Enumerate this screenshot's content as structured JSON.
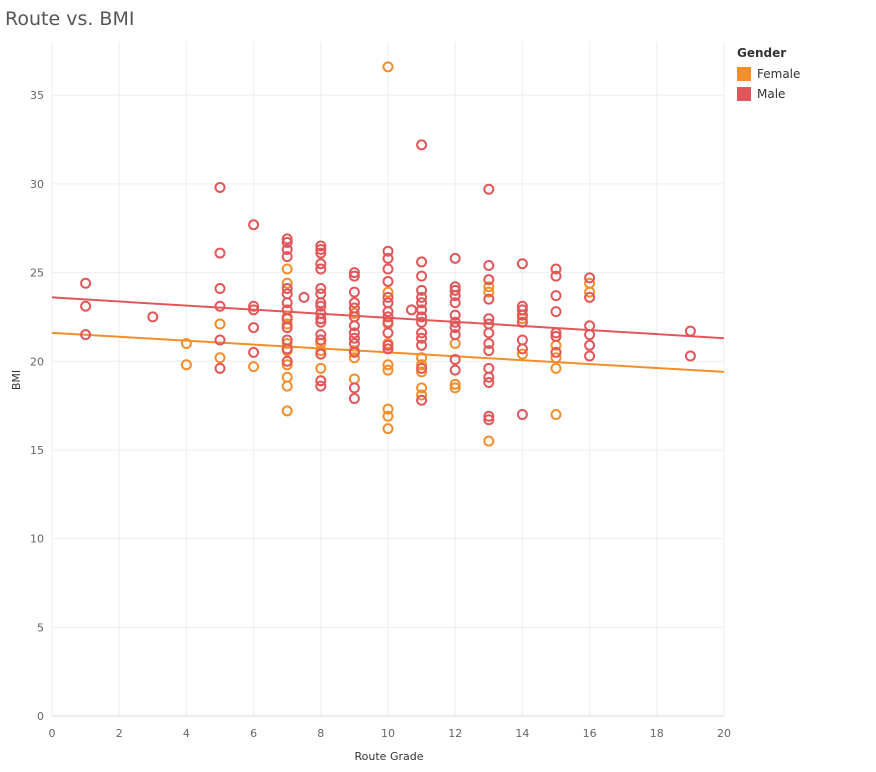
{
  "title": "Route vs. BMI",
  "legend": {
    "title": "Gender",
    "items": [
      {
        "label": "Female",
        "color": "#F28E2B"
      },
      {
        "label": "Male",
        "color": "#E15759"
      }
    ]
  },
  "chart_data": {
    "type": "scatter",
    "xlabel": "Route Grade",
    "ylabel": "BMI",
    "xlim": [
      0,
      20
    ],
    "ylim": [
      0,
      38
    ],
    "xticks": [
      0,
      2,
      4,
      6,
      8,
      10,
      12,
      14,
      16,
      18,
      20
    ],
    "yticks": [
      0,
      5,
      10,
      15,
      20,
      25,
      30,
      35
    ],
    "grid": true,
    "legend_position": "top-right",
    "series": [
      {
        "name": "Female",
        "color": "#F28E2B",
        "trend": {
          "x": [
            0,
            20
          ],
          "y": [
            21.6,
            19.4
          ]
        },
        "points": [
          [
            4,
            21.0
          ],
          [
            4,
            19.8
          ],
          [
            5,
            22.1
          ],
          [
            5,
            20.2
          ],
          [
            6,
            19.7
          ],
          [
            7,
            25.2
          ],
          [
            7,
            24.4
          ],
          [
            7,
            22.5
          ],
          [
            7,
            22.1
          ],
          [
            7,
            21.0
          ],
          [
            7,
            20.6
          ],
          [
            7,
            19.8
          ],
          [
            7,
            19.1
          ],
          [
            7,
            18.6
          ],
          [
            7,
            17.2
          ],
          [
            8,
            21.0
          ],
          [
            8,
            20.6
          ],
          [
            8,
            19.6
          ],
          [
            8,
            18.9
          ],
          [
            9,
            22.7
          ],
          [
            9,
            20.6
          ],
          [
            9,
            20.2
          ],
          [
            9,
            19.0
          ],
          [
            10,
            36.6
          ],
          [
            10,
            23.9
          ],
          [
            10,
            22.1
          ],
          [
            10,
            21.0
          ],
          [
            10,
            19.8
          ],
          [
            10,
            19.5
          ],
          [
            10,
            17.3
          ],
          [
            10,
            16.9
          ],
          [
            10,
            16.2
          ],
          [
            11,
            20.2
          ],
          [
            11,
            19.8
          ],
          [
            11,
            19.4
          ],
          [
            11,
            18.5
          ],
          [
            11,
            18.1
          ],
          [
            12,
            21.0
          ],
          [
            12,
            18.7
          ],
          [
            12,
            18.5
          ],
          [
            13,
            24.2
          ],
          [
            13,
            23.9
          ],
          [
            13,
            15.5
          ],
          [
            14,
            22.4
          ],
          [
            14,
            20.4
          ],
          [
            15,
            20.9
          ],
          [
            15,
            20.2
          ],
          [
            15,
            19.6
          ],
          [
            15,
            17.0
          ],
          [
            16,
            24.4
          ],
          [
            16,
            23.9
          ]
        ]
      },
      {
        "name": "Male",
        "color": "#E15759",
        "trend": {
          "x": [
            0,
            20
          ],
          "y": [
            23.6,
            21.3
          ]
        },
        "points": [
          [
            1,
            24.4
          ],
          [
            1,
            23.1
          ],
          [
            1,
            21.5
          ],
          [
            3,
            22.5
          ],
          [
            5,
            29.8
          ],
          [
            5,
            26.1
          ],
          [
            5,
            24.1
          ],
          [
            5,
            23.1
          ],
          [
            5,
            21.2
          ],
          [
            5,
            19.6
          ],
          [
            6,
            27.7
          ],
          [
            6,
            23.1
          ],
          [
            6,
            22.9
          ],
          [
            6,
            21.9
          ],
          [
            6,
            20.5
          ],
          [
            7,
            26.9
          ],
          [
            7,
            26.7
          ],
          [
            7,
            26.3
          ],
          [
            7,
            25.9
          ],
          [
            7,
            24.1
          ],
          [
            7,
            23.8
          ],
          [
            7,
            23.3
          ],
          [
            7,
            22.9
          ],
          [
            7,
            22.4
          ],
          [
            7,
            21.9
          ],
          [
            7,
            21.2
          ],
          [
            7,
            20.7
          ],
          [
            7,
            20.0
          ],
          [
            7.5,
            23.6
          ],
          [
            8,
            26.5
          ],
          [
            8,
            26.3
          ],
          [
            8,
            26.1
          ],
          [
            8,
            25.5
          ],
          [
            8,
            25.2
          ],
          [
            8,
            24.1
          ],
          [
            8,
            23.8
          ],
          [
            8,
            23.3
          ],
          [
            8,
            23.1
          ],
          [
            8,
            22.7
          ],
          [
            8,
            22.4
          ],
          [
            8,
            22.2
          ],
          [
            8,
            21.5
          ],
          [
            8,
            21.2
          ],
          [
            8,
            20.4
          ],
          [
            8,
            18.9
          ],
          [
            8,
            18.6
          ],
          [
            9,
            25.0
          ],
          [
            9,
            24.8
          ],
          [
            9,
            23.9
          ],
          [
            9,
            23.3
          ],
          [
            9,
            23.0
          ],
          [
            9,
            22.5
          ],
          [
            9,
            22.0
          ],
          [
            9,
            21.6
          ],
          [
            9,
            21.3
          ],
          [
            9,
            21.0
          ],
          [
            9,
            20.5
          ],
          [
            9,
            18.5
          ],
          [
            9,
            17.9
          ],
          [
            10,
            26.2
          ],
          [
            10,
            25.8
          ],
          [
            10,
            25.2
          ],
          [
            10,
            24.5
          ],
          [
            10,
            23.6
          ],
          [
            10,
            23.3
          ],
          [
            10,
            22.8
          ],
          [
            10,
            22.5
          ],
          [
            10,
            22.2
          ],
          [
            10,
            21.6
          ],
          [
            10,
            20.9
          ],
          [
            10,
            20.7
          ],
          [
            10.7,
            22.9
          ],
          [
            11,
            32.2
          ],
          [
            11,
            25.6
          ],
          [
            11,
            24.8
          ],
          [
            11,
            24.0
          ],
          [
            11,
            23.6
          ],
          [
            11,
            23.3
          ],
          [
            11,
            22.9
          ],
          [
            11,
            22.5
          ],
          [
            11,
            22.2
          ],
          [
            11,
            21.6
          ],
          [
            11,
            21.3
          ],
          [
            11,
            20.9
          ],
          [
            11,
            19.6
          ],
          [
            11,
            17.8
          ],
          [
            12,
            25.8
          ],
          [
            12,
            24.2
          ],
          [
            12,
            24.0
          ],
          [
            12,
            23.7
          ],
          [
            12,
            23.3
          ],
          [
            12,
            22.6
          ],
          [
            12,
            22.2
          ],
          [
            12,
            21.9
          ],
          [
            12,
            21.5
          ],
          [
            12,
            20.1
          ],
          [
            12,
            19.5
          ],
          [
            13,
            29.7
          ],
          [
            13,
            25.4
          ],
          [
            13,
            24.6
          ],
          [
            13,
            23.5
          ],
          [
            13,
            22.4
          ],
          [
            13,
            22.1
          ],
          [
            13,
            21.6
          ],
          [
            13,
            21.0
          ],
          [
            13,
            20.6
          ],
          [
            13,
            19.6
          ],
          [
            13,
            19.1
          ],
          [
            13,
            18.8
          ],
          [
            13,
            16.9
          ],
          [
            13,
            16.7
          ],
          [
            14,
            25.5
          ],
          [
            14,
            23.1
          ],
          [
            14,
            22.9
          ],
          [
            14,
            22.6
          ],
          [
            14,
            22.2
          ],
          [
            14,
            21.2
          ],
          [
            14,
            20.7
          ],
          [
            14,
            17.0
          ],
          [
            15,
            25.2
          ],
          [
            15,
            24.8
          ],
          [
            15,
            23.7
          ],
          [
            15,
            22.8
          ],
          [
            15,
            21.6
          ],
          [
            15,
            21.4
          ],
          [
            15,
            20.5
          ],
          [
            16,
            24.7
          ],
          [
            16,
            23.6
          ],
          [
            16,
            22.0
          ],
          [
            16,
            21.5
          ],
          [
            16,
            20.9
          ],
          [
            16,
            20.3
          ],
          [
            19,
            21.7
          ],
          [
            19,
            20.3
          ]
        ]
      }
    ]
  }
}
